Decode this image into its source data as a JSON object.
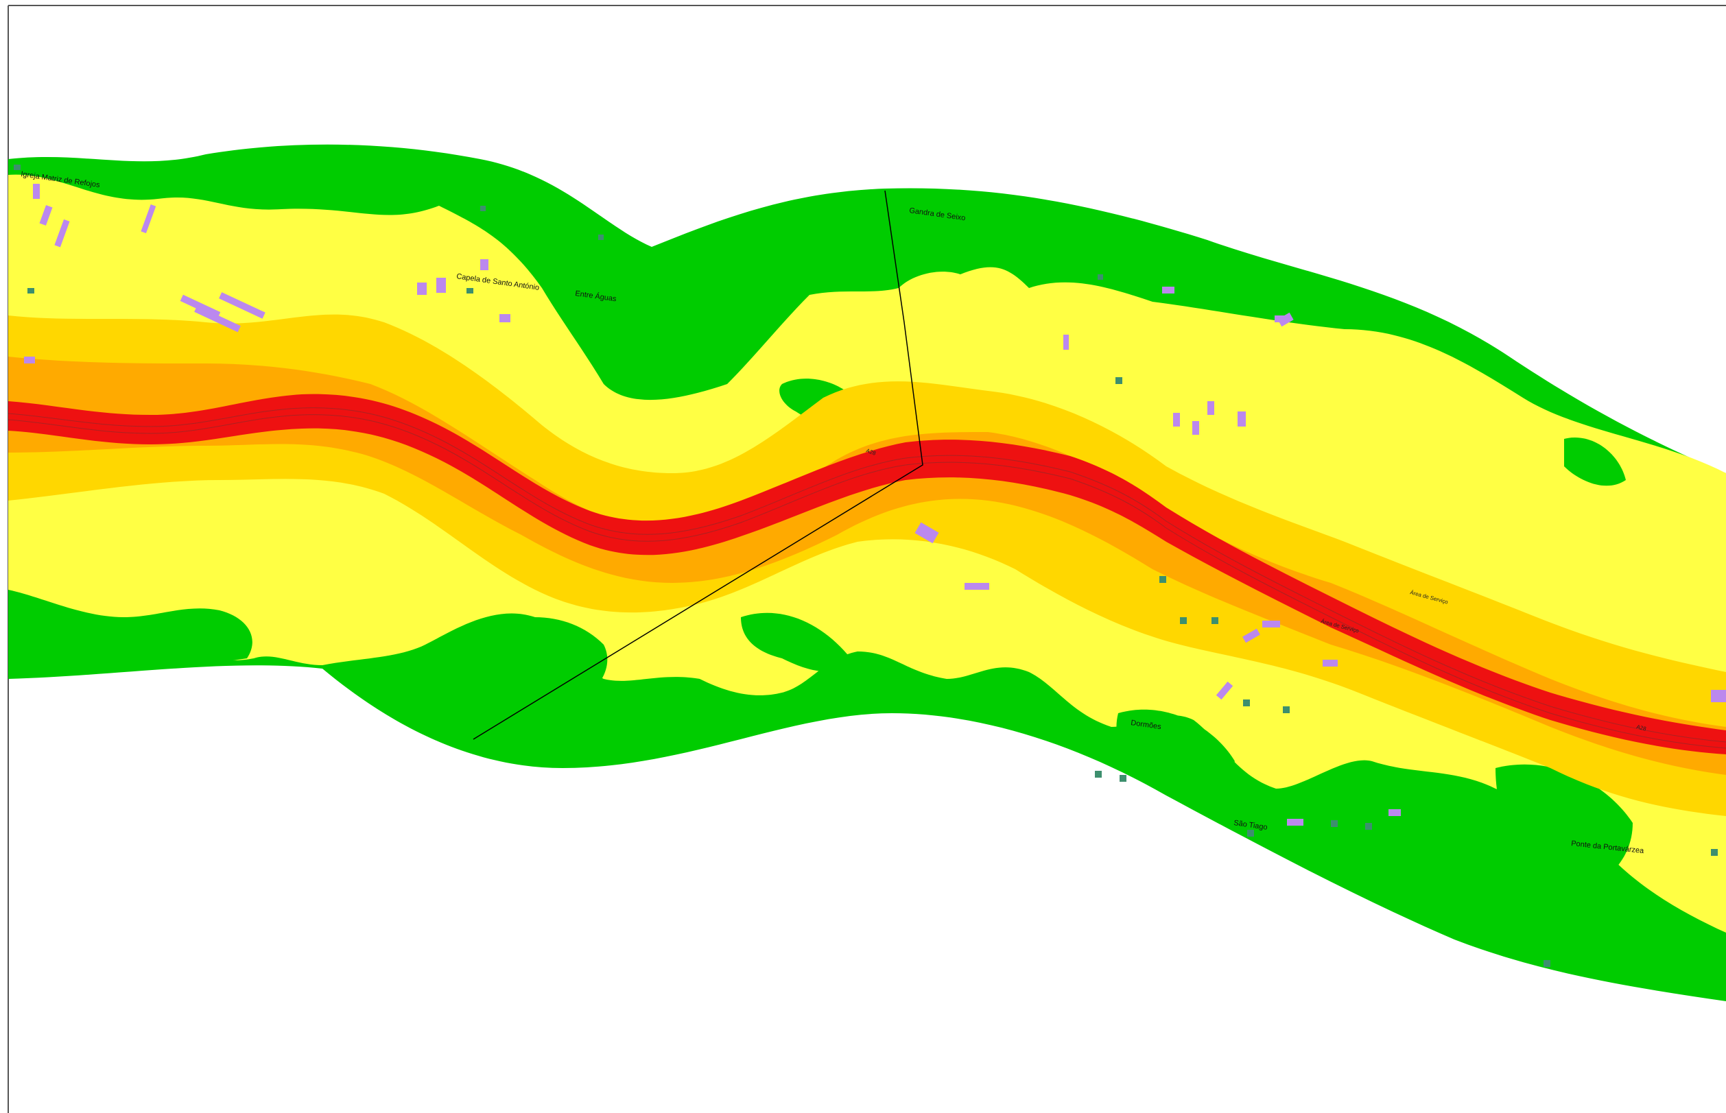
{
  "map": {
    "colors": {
      "background": "#ffffff",
      "frame": "#555555",
      "zone_outer": "#00cc00",
      "zone_low": "#ffff44",
      "zone_mid": "#ffd700",
      "zone_high": "#ffaa00",
      "zone_road": "#ee1111",
      "road_lines": "#aa2222",
      "buildings_residential": "#bb88ee",
      "buildings_other": "#3d8f6e",
      "boundary": "#000000"
    },
    "places": [
      "Igreja Matriz de Refojos",
      "Capela de Santo António",
      "Entre Águas",
      "Gandra de Seixo",
      "Dormões",
      "São Tiago",
      "Ponte da Portavárzea"
    ],
    "road_labels": [
      "A28",
      "Área de Serviço",
      "Área de Serviço",
      "A28"
    ]
  }
}
